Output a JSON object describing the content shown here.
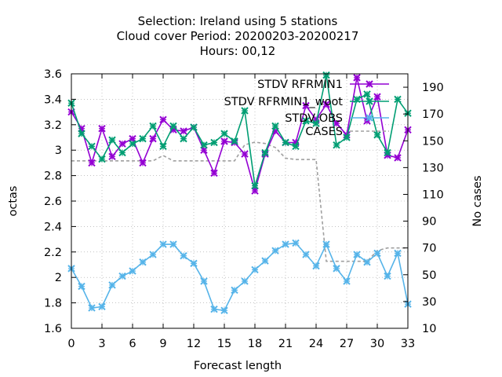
{
  "title": {
    "line1": "Selection: Ireland using     5 stations",
    "line2": "Cloud cover   Period: 20200203-20200217",
    "line3": "Hours:  00,12"
  },
  "chart_data": {
    "type": "line",
    "xlabel": "Forecast length",
    "ylabel": "octas",
    "y2label": "No cases",
    "x": [
      0,
      1,
      2,
      3,
      4,
      5,
      6,
      7,
      8,
      9,
      10,
      11,
      12,
      13,
      14,
      15,
      16,
      17,
      18,
      19,
      20,
      21,
      22,
      23,
      24,
      25,
      26,
      27,
      28,
      29,
      30,
      31,
      32,
      33
    ],
    "xticks": [
      0,
      3,
      6,
      9,
      12,
      15,
      18,
      21,
      24,
      27,
      30,
      33
    ],
    "xlim": [
      0,
      33
    ],
    "ylim": [
      1.6,
      3.6
    ],
    "yticks": [
      "1.6",
      "1.8",
      "2",
      "2.2",
      "2.4",
      "2.6",
      "2.8",
      "3",
      "3.2",
      "3.4",
      "3.6"
    ],
    "y2lim": [
      10,
      200
    ],
    "y2ticks": [
      "10",
      "30",
      "50",
      "70",
      "90",
      "110",
      "130",
      "150",
      "170",
      "190"
    ],
    "grid": true,
    "legend_position": "top-right",
    "series": [
      {
        "name": "STDV RFRMIN1",
        "axis": "y1",
        "color": "#9400d3",
        "marker": "x",
        "values": [
          3.3,
          3.17,
          2.9,
          3.17,
          2.95,
          3.05,
          3.09,
          2.9,
          3.09,
          3.24,
          3.16,
          3.15,
          3.18,
          3.0,
          2.82,
          3.07,
          3.06,
          2.97,
          2.68,
          2.97,
          3.15,
          3.06,
          3.06,
          3.35,
          3.24,
          3.36,
          3.21,
          3.12,
          3.57,
          3.23,
          3.42,
          2.96,
          2.94,
          3.16
        ]
      },
      {
        "name": "STDV RFRMIN1_woot",
        "axis": "y1",
        "color": "#009e73",
        "marker": "x",
        "values": [
          3.37,
          3.13,
          3.03,
          2.93,
          3.08,
          2.98,
          3.05,
          3.09,
          3.19,
          3.03,
          3.19,
          3.09,
          3.18,
          3.04,
          3.06,
          3.13,
          3.07,
          3.31,
          2.72,
          2.98,
          3.19,
          3.06,
          3.03,
          3.23,
          3.21,
          3.59,
          3.04,
          3.1,
          3.4,
          3.44,
          3.12,
          2.98,
          3.4,
          3.29
        ]
      },
      {
        "name": "STDV OBS",
        "axis": "y1",
        "color": "#56b4e9",
        "marker": "x",
        "values": [
          2.07,
          1.93,
          1.76,
          1.77,
          1.94,
          2.01,
          2.05,
          2.12,
          2.18,
          2.26,
          2.26,
          2.17,
          2.11,
          1.97,
          1.75,
          1.74,
          1.9,
          1.97,
          2.06,
          2.13,
          2.21,
          2.26,
          2.27,
          2.18,
          2.09,
          2.26,
          2.07,
          1.97,
          2.18,
          2.12,
          2.19,
          2.01,
          2.19,
          1.79
        ]
      },
      {
        "name": "CASES",
        "axis": "y2",
        "color": "#a0a0a0",
        "dashed": true,
        "values": [
          135,
          135,
          135,
          135,
          135,
          135,
          135,
          135,
          135,
          139,
          135,
          135,
          135,
          135,
          135,
          135,
          135,
          147,
          149,
          148,
          145,
          137,
          136,
          136,
          136,
          60,
          60,
          60,
          60,
          60,
          68,
          70,
          70,
          70
        ]
      }
    ]
  },
  "legend": {
    "entries": [
      "STDV RFRMIN1",
      "STDV RFRMIN1_woot",
      "STDV OBS",
      "CASES"
    ]
  }
}
